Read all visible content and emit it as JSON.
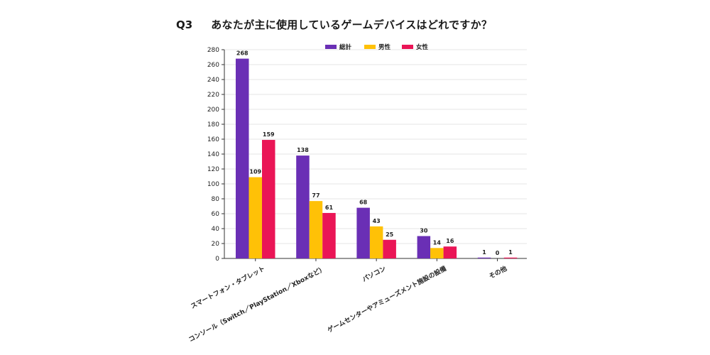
{
  "question": {
    "label": "Q3",
    "text": "あなたが主に使用しているゲームデバイスはどれですか？"
  },
  "chart_data": {
    "type": "bar",
    "title": "",
    "xlabel": "",
    "ylabel": "",
    "ylim": [
      0,
      280
    ],
    "yticks": [
      0,
      20,
      40,
      60,
      80,
      100,
      120,
      140,
      160,
      180,
      200,
      220,
      240,
      260,
      280
    ],
    "grid": true,
    "legend_position": "top",
    "categories": [
      "スマートフォン・タブレット",
      "コンソール（Switch／PlayStation／Xboxなど）",
      "パソコン",
      "ゲームセンターやアミューズメント施設の設備",
      "その他"
    ],
    "series": [
      {
        "name": "総計",
        "color": "#6a2fb5",
        "values": [
          268,
          138,
          68,
          30,
          1
        ]
      },
      {
        "name": "男性",
        "color": "#ffc107",
        "values": [
          109,
          77,
          43,
          14,
          0
        ]
      },
      {
        "name": "女性",
        "color": "#ea1556",
        "values": [
          159,
          61,
          25,
          16,
          1
        ]
      }
    ]
  }
}
